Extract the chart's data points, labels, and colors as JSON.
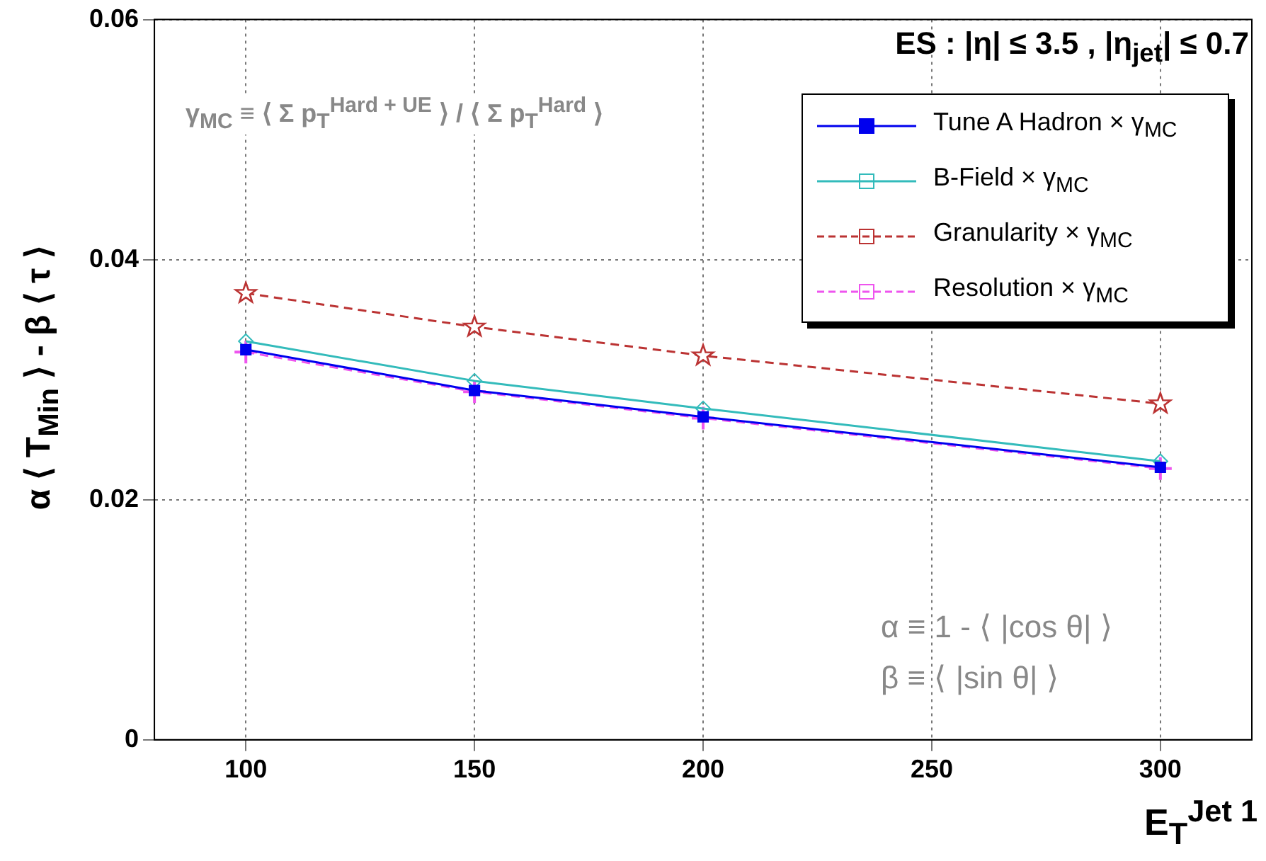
{
  "chart_data": {
    "type": "line",
    "xlabel": "E$_{T}$$^{Jet 1}$",
    "ylabel": "α ⟨ T$_{Min}$ ⟩ - β ⟨ τ ⟩",
    "x": [
      100,
      150,
      200,
      300
    ],
    "xlim": [
      80,
      320
    ],
    "xticks": [
      100,
      150,
      200,
      250,
      300
    ],
    "ylim": [
      0,
      0.06
    ],
    "yticks": [
      0,
      0.02,
      0.04,
      0.06
    ],
    "grid": true,
    "legend": "top right",
    "series": [
      {
        "name": "Tune A Hadron × γ$_{MC}$",
        "color": "#0000ee",
        "marker": "square",
        "line_style": "solid",
        "values": [
          0.0325,
          0.0291,
          0.0269,
          0.0227
        ]
      },
      {
        "name": "B-Field × γ$_{MC}$",
        "color": "#33bbbb",
        "marker": "diamond",
        "line_style": "solid",
        "values": [
          0.0332,
          0.0299,
          0.0276,
          0.0232
        ]
      },
      {
        "name": "Granularity × γ$_{MC}$",
        "color": "#bb3333",
        "marker": "star",
        "line_style": "dashed",
        "values": [
          0.0372,
          0.0344,
          0.032,
          0.028
        ]
      },
      {
        "name": "Resolution × γ$_{MC}$",
        "color": "#ee55ee",
        "marker": "cross",
        "line_style": "dashed",
        "values": [
          0.0323,
          0.029,
          0.0268,
          0.0226
        ]
      }
    ],
    "annotations": [
      "ES : |η| ≤ 3.5  ,  |η$_{jet}$| ≤ 0.7",
      "γ$_{MC}$ ≡ ⟨ Σ p$_{T}$$^{Hard + UE}$ ⟩ / ⟨ Σ p$_{T}$$^{Hard}$ ⟩",
      "α ≡ 1 - ⟨ |cos θ| ⟩",
      "β ≡ ⟨ |sin θ| ⟩"
    ]
  }
}
